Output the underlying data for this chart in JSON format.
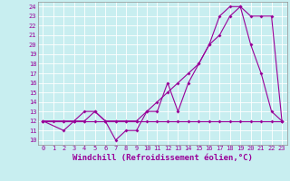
{
  "xlabel": "Windchill (Refroidissement éolien,°C)",
  "bg_color": "#c8eef0",
  "line_color": "#990099",
  "grid_color": "#ffffff",
  "xlim": [
    -0.5,
    23.5
  ],
  "ylim": [
    9.5,
    24.5
  ],
  "yticks": [
    10,
    11,
    12,
    13,
    14,
    15,
    16,
    17,
    18,
    19,
    20,
    21,
    22,
    23,
    24
  ],
  "xticks": [
    0,
    1,
    2,
    3,
    4,
    5,
    6,
    7,
    8,
    9,
    10,
    11,
    12,
    13,
    14,
    15,
    16,
    17,
    18,
    19,
    20,
    21,
    22,
    23
  ],
  "line1_x": [
    0,
    1,
    2,
    3,
    4,
    5,
    6,
    7,
    8,
    9,
    10,
    11,
    12,
    13,
    14,
    15,
    16,
    17,
    18,
    19,
    20,
    21,
    22,
    23
  ],
  "line1_y": [
    12,
    12,
    12,
    12,
    12,
    12,
    12,
    12,
    12,
    12,
    12,
    12,
    12,
    12,
    12,
    12,
    12,
    12,
    12,
    12,
    12,
    12,
    12,
    12
  ],
  "line2_x": [
    0,
    2,
    3,
    4,
    5,
    6,
    7,
    8,
    9,
    10,
    11,
    12,
    13,
    14,
    15,
    16,
    17,
    18,
    19,
    20,
    21,
    22,
    23
  ],
  "line2_y": [
    12,
    11,
    12,
    12,
    13,
    12,
    10,
    11,
    11,
    13,
    13,
    16,
    13,
    16,
    18,
    20,
    23,
    24,
    24,
    20,
    17,
    13,
    12
  ],
  "line3_x": [
    0,
    2,
    3,
    4,
    5,
    6,
    7,
    8,
    9,
    10,
    11,
    12,
    13,
    14,
    15,
    16,
    17,
    18,
    19,
    20,
    21,
    22,
    23
  ],
  "line3_y": [
    12,
    12,
    12,
    13,
    13,
    12,
    12,
    12,
    12,
    13,
    14,
    15,
    16,
    17,
    18,
    20,
    21,
    23,
    24,
    23,
    23,
    23,
    12
  ],
  "marker_size": 2,
  "linewidth": 0.8,
  "tick_fontsize": 5,
  "xlabel_fontsize": 6.5
}
